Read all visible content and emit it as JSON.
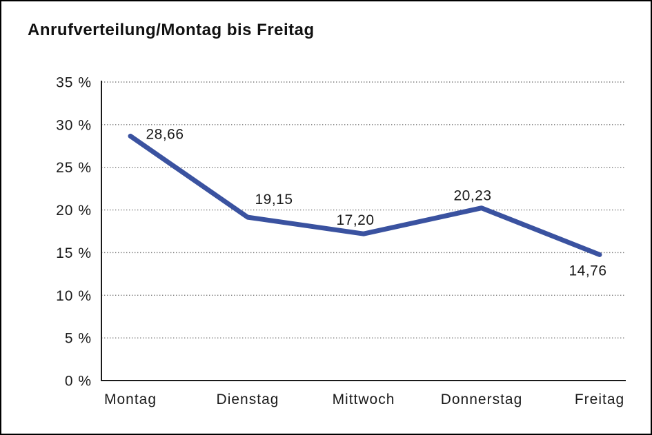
{
  "chart_data": {
    "type": "line",
    "title": "Anrufverteilung/Montag bis Freitag",
    "categories": [
      "Montag",
      "Dienstag",
      "Mittwoch",
      "Donnerstag",
      "Freitag"
    ],
    "series": [
      {
        "name": "Anrufverteilung",
        "values": [
          28.66,
          19.15,
          17.2,
          20.23,
          14.76
        ],
        "value_labels": [
          "28,66",
          "19,15",
          "17,20",
          "20,23",
          "14,76"
        ]
      }
    ],
    "xlabel": "",
    "ylabel": "",
    "ylim": [
      0,
      35
    ],
    "y_step": 5,
    "y_tick_labels": [
      "0 %",
      "5 %",
      "10 %",
      "15 %",
      "20 %",
      "25 %",
      "30 %",
      "35 %"
    ],
    "grid": "dotted horizontal",
    "legend": "none",
    "line_color": "#3A52A0",
    "grid_color": "#7a7a7a",
    "axis_color": "#1a1a1a",
    "background_color": "#ffffff"
  }
}
